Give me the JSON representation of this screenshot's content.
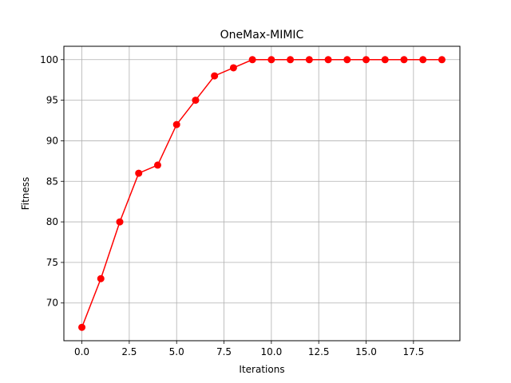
{
  "chart_data": {
    "type": "line",
    "title": "OneMax-MIMIC",
    "xlabel": "Iterations",
    "ylabel": "Fitness",
    "xlim": [
      -0.95,
      19.95
    ],
    "ylim": [
      65.35,
      101.65
    ],
    "xticks": [
      0.0,
      2.5,
      5.0,
      7.5,
      10.0,
      12.5,
      15.0,
      17.5
    ],
    "xtick_labels": [
      "0.0",
      "2.5",
      "5.0",
      "7.5",
      "10.0",
      "12.5",
      "15.0",
      "17.5"
    ],
    "yticks": [
      70,
      75,
      80,
      85,
      90,
      95,
      100
    ],
    "ytick_labels": [
      "70",
      "75",
      "80",
      "85",
      "90",
      "95",
      "100"
    ],
    "grid": true,
    "color": "#ff0000",
    "marker": "circle",
    "series": [
      {
        "x": [
          0,
          1,
          2,
          3,
          4,
          5,
          6,
          7,
          8,
          9,
          10,
          11,
          12,
          13,
          14,
          15,
          16,
          17,
          18,
          19
        ],
        "values": [
          67,
          73,
          80,
          86,
          87,
          92,
          95,
          98,
          99,
          100,
          100,
          100,
          100,
          100,
          100,
          100,
          100,
          100,
          100,
          100
        ]
      }
    ]
  }
}
